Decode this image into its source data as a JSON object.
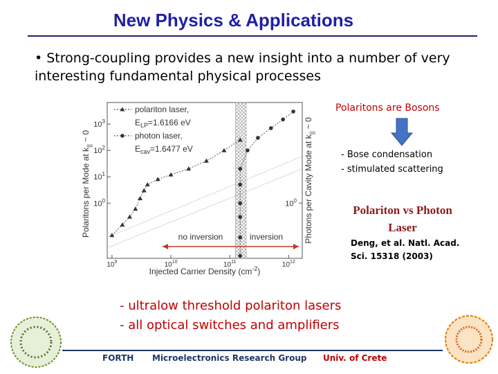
{
  "header": {
    "title": "New Physics & Applications"
  },
  "bullet": "• Strong-coupling provides a new insight into a number of very interesting fundamental physical processes",
  "side": {
    "bosons": "Polaritons are Bosons",
    "items": [
      "- Bose condensation",
      "- stimulated scattering"
    ],
    "comparison": "Polariton vs Photon Laser",
    "reference": "Deng, et al. Natl. Acad. Sci. 15318 (2003)"
  },
  "bottom": [
    "- ultralow threshold polariton lasers",
    "- all optical switches and amplifiers"
  ],
  "footer": [
    "FORTH",
    "Microelectronics Research Group",
    "Univ. of Crete"
  ],
  "figure": {
    "type": "scatter",
    "log_x": true,
    "log_y": true,
    "xlabel": {
      "text": "Injected Carrier Density (cm",
      "sup": "-2",
      "end": ")"
    },
    "ylabel": {
      "text": "Polaritons per Mode at k",
      "sub": "||",
      "end": " ~ 0"
    },
    "y2label": {
      "text": "Photons per Cavity Mode at k",
      "sub": "||",
      "end": " ~ 0"
    },
    "xlim": [
      830000000,
      1700000000000
    ],
    "ylim": [
      0.008,
      6600
    ],
    "y2lim": [
      0.008,
      6600
    ],
    "xticks": [
      {
        "value": 1000000000,
        "label": "10",
        "exp": "9"
      },
      {
        "value": 10000000000,
        "label": "10",
        "exp": "10"
      },
      {
        "value": 100000000000,
        "label": "10",
        "exp": "11"
      },
      {
        "value": 1000000000000,
        "label": "10",
        "exp": "12"
      }
    ],
    "yticks": [
      {
        "value": 1,
        "label": "10",
        "exp": "0"
      },
      {
        "value": 10,
        "label": "10",
        "exp": "1"
      },
      {
        "value": 100,
        "label": "10",
        "exp": "2"
      },
      {
        "value": 1000,
        "label": "10",
        "exp": "3"
      }
    ],
    "y2ticks": [
      {
        "value": 1,
        "label": "10",
        "exp": "0"
      }
    ],
    "band": [
      125000000000,
      190000000000
    ],
    "annotations": [
      "no inversion",
      "inversion"
    ],
    "series": [
      {
        "name": "polariton laser,",
        "marker": "triangle",
        "color": "#333333",
        "energy": {
          "symbol": "E",
          "sub": "LP",
          "text": "=1.6166 eV"
        },
        "x": [
          1000000000,
          1500000000,
          2000000000,
          2500000000,
          3000000000,
          3500000000,
          4000000000,
          6000000000,
          10000000000,
          20000000000,
          40000000000,
          80000000000,
          150000000000
        ],
        "values": [
          0.06,
          0.15,
          0.3,
          0.6,
          1.5,
          3,
          5,
          8,
          12,
          20,
          40,
          100,
          250
        ]
      },
      {
        "name": "photon laser,",
        "marker": "circle",
        "color": "#333333",
        "axis": "y2",
        "energy": {
          "symbol": "E",
          "sub": "cav",
          "text": "=1.6477 eV"
        },
        "x": [
          150000000000,
          150000000000,
          150000000000,
          150000000000,
          150000000000,
          150000000000,
          200000000000,
          300000000000,
          500000000000,
          800000000000,
          1200000000000
        ],
        "values": [
          0.01,
          0.05,
          0.3,
          1,
          5,
          20,
          100,
          300,
          700,
          1500,
          3000
        ]
      }
    ]
  }
}
